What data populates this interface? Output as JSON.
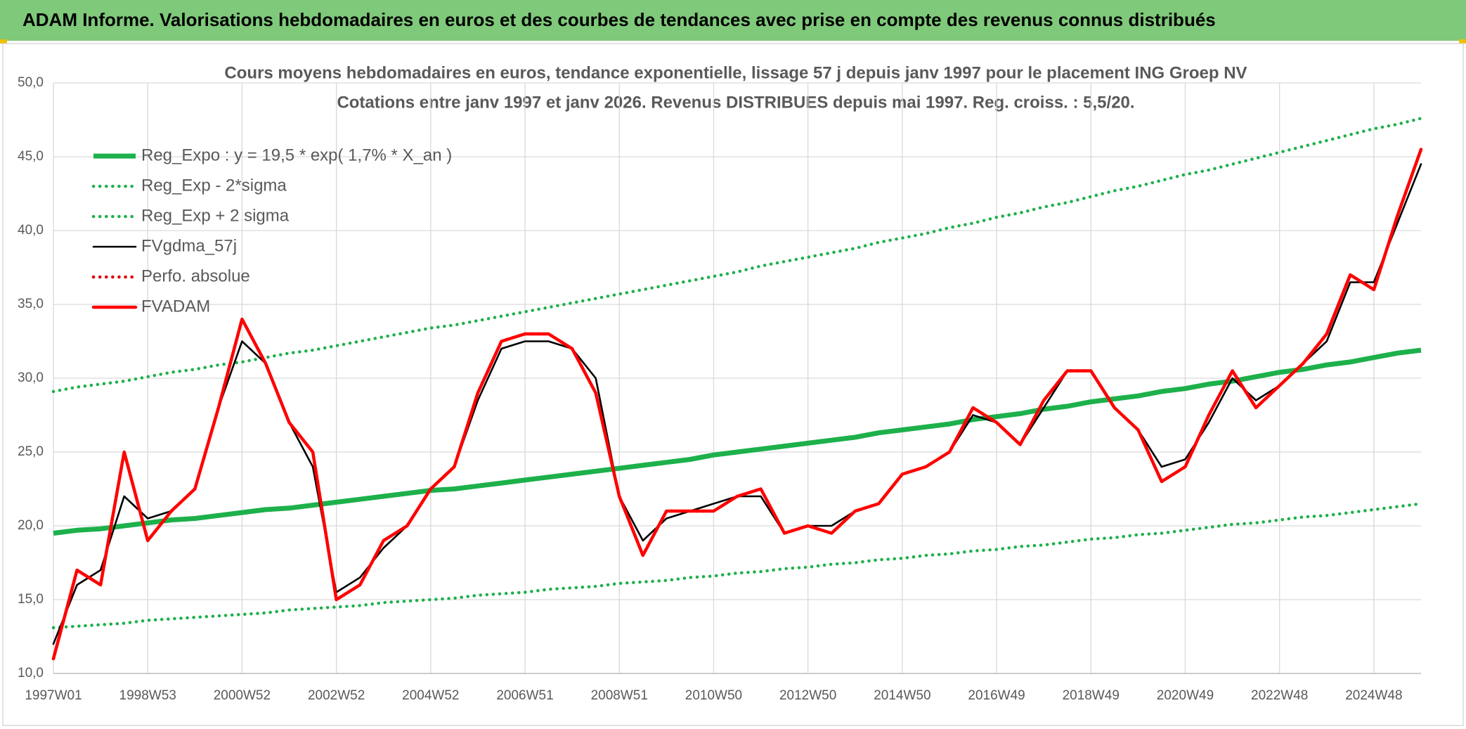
{
  "header": {
    "title": "ADAM Informe. Valorisations hebdomadaires en euros et des courbes de tendances avec prise en compte des revenus connus distribués"
  },
  "chart_data": {
    "type": "line",
    "title": "Cours moyens hebdomadaires en euros, tendance exponentielle, lissage 57 j depuis janv 1997 pour le placement ING Groep NV",
    "subtitle": "Cotations entre janv 1997 et janv 2026. Revenus DISTRIBUES depuis mai 1997. Reg. croiss. : 5,5/20.",
    "categories": [
      "1997W01",
      null,
      null,
      null,
      "1998W53",
      null,
      null,
      null,
      "2000W52",
      null,
      null,
      null,
      "2002W52",
      null,
      null,
      null,
      "2004W52",
      null,
      null,
      null,
      "2006W51",
      null,
      null,
      null,
      "2008W51",
      null,
      null,
      null,
      "2010W50",
      null,
      null,
      null,
      "2012W50",
      null,
      null,
      null,
      "2014W50",
      null,
      null,
      null,
      "2016W49",
      null,
      null,
      null,
      "2018W49",
      null,
      null,
      null,
      "2020W49",
      null,
      null,
      null,
      "2022W48",
      null,
      null,
      null,
      "2024W48",
      null,
      null
    ],
    "ylim": [
      10,
      50
    ],
    "yticks": [
      {
        "value": 10,
        "label": "10,0"
      },
      {
        "value": 15,
        "label": "15,0"
      },
      {
        "value": 20,
        "label": "20,0"
      },
      {
        "value": 25,
        "label": "25,0"
      },
      {
        "value": 30,
        "label": "30,0"
      },
      {
        "value": 35,
        "label": "35,0"
      },
      {
        "value": 40,
        "label": "40,0"
      },
      {
        "value": 45,
        "label": "45,0"
      },
      {
        "value": 50,
        "label": "50,0"
      }
    ],
    "grid": true,
    "legend": "upper left",
    "series": [
      {
        "name": "Reg_Expo : y = 19,5 * exp( 1,7% *  X_an )",
        "color": "#1db04b",
        "style": "thick",
        "values": [
          19.5,
          19.7,
          19.8,
          20.0,
          20.2,
          20.4,
          20.5,
          20.7,
          20.9,
          21.1,
          21.2,
          21.4,
          21.6,
          21.8,
          22.0,
          22.2,
          22.4,
          22.5,
          22.7,
          22.9,
          23.1,
          23.3,
          23.5,
          23.7,
          23.9,
          24.1,
          24.3,
          24.5,
          24.8,
          25.0,
          25.2,
          25.4,
          25.6,
          25.8,
          26.0,
          26.3,
          26.5,
          26.7,
          26.9,
          27.2,
          27.4,
          27.6,
          27.9,
          28.1,
          28.4,
          28.6,
          28.8,
          29.1,
          29.3,
          29.6,
          29.8,
          30.1,
          30.4,
          30.6,
          30.9,
          31.1,
          31.4,
          31.7,
          31.9
        ]
      },
      {
        "name": "Reg_Exp - 2*sigma",
        "color": "#1db04b",
        "style": "dotted",
        "values": [
          13.1,
          13.2,
          13.3,
          13.4,
          13.6,
          13.7,
          13.8,
          13.9,
          14.0,
          14.1,
          14.3,
          14.4,
          14.5,
          14.6,
          14.8,
          14.9,
          15.0,
          15.1,
          15.3,
          15.4,
          15.5,
          15.7,
          15.8,
          15.9,
          16.1,
          16.2,
          16.3,
          16.5,
          16.6,
          16.8,
          16.9,
          17.1,
          17.2,
          17.4,
          17.5,
          17.7,
          17.8,
          18.0,
          18.1,
          18.3,
          18.4,
          18.6,
          18.7,
          18.9,
          19.1,
          19.2,
          19.4,
          19.5,
          19.7,
          19.9,
          20.1,
          20.2,
          20.4,
          20.6,
          20.7,
          20.9,
          21.1,
          21.3,
          21.5
        ]
      },
      {
        "name": "Reg_Exp + 2 sigma",
        "color": "#1db04b",
        "style": "dotted",
        "values": [
          29.1,
          29.4,
          29.6,
          29.8,
          30.1,
          30.4,
          30.6,
          30.9,
          31.1,
          31.4,
          31.7,
          31.9,
          32.2,
          32.5,
          32.8,
          33.1,
          33.4,
          33.6,
          33.9,
          34.2,
          34.5,
          34.8,
          35.1,
          35.4,
          35.7,
          36.0,
          36.3,
          36.6,
          36.9,
          37.2,
          37.6,
          37.9,
          38.2,
          38.5,
          38.8,
          39.2,
          39.5,
          39.8,
          40.2,
          40.5,
          40.9,
          41.2,
          41.6,
          41.9,
          42.3,
          42.7,
          43.0,
          43.4,
          43.8,
          44.1,
          44.5,
          44.9,
          45.3,
          45.7,
          46.1,
          46.5,
          46.9,
          47.2,
          47.6
        ]
      },
      {
        "name": "FVgdma_57j",
        "color": "#000000",
        "style": "thin",
        "values": [
          12,
          16,
          17,
          22,
          20.5,
          21,
          22.5,
          28,
          32.5,
          31,
          27,
          24,
          15.5,
          16.5,
          18.5,
          20,
          22.5,
          24,
          28.5,
          32,
          32.5,
          32.5,
          32,
          30,
          22,
          19,
          20.5,
          21,
          21.5,
          22,
          22,
          19.5,
          20,
          20,
          21,
          21.5,
          23.5,
          24,
          25,
          27.5,
          27,
          25.5,
          28,
          30.5,
          30.5,
          28,
          26.5,
          24,
          24.5,
          27,
          30,
          28.5,
          29.5,
          31,
          32.5,
          36.5,
          36.5,
          40.5,
          44.5
        ]
      },
      {
        "name": "Perfo. absolue",
        "color": "#e00000",
        "style": "dotted",
        "values": [
          11,
          17,
          16,
          25,
          19,
          21,
          22.5,
          28,
          34,
          31,
          27,
          25,
          15,
          16,
          19,
          20,
          22.5,
          24,
          29,
          32.5,
          33,
          33,
          32,
          29,
          22,
          18,
          21,
          21,
          21,
          22,
          22.5,
          19.5,
          20,
          19.5,
          21,
          21.5,
          23.5,
          24,
          25,
          28,
          27,
          25.5,
          28.5,
          30.5,
          30.5,
          28,
          26.5,
          23,
          24,
          27.5,
          30.5,
          28,
          29.5,
          31,
          33,
          37,
          36,
          41,
          45.5
        ]
      },
      {
        "name": "FVADAM",
        "color": "#ff0000",
        "style": "solid",
        "values": [
          11,
          17,
          16,
          25,
          19,
          21,
          22.5,
          28,
          34,
          31,
          27,
          25,
          15,
          16,
          19,
          20,
          22.5,
          24,
          29,
          32.5,
          33,
          33,
          32,
          29,
          22,
          18,
          21,
          21,
          21,
          22,
          22.5,
          19.5,
          20,
          19.5,
          21,
          21.5,
          23.5,
          24,
          25,
          28,
          27,
          25.5,
          28.5,
          30.5,
          30.5,
          28,
          26.5,
          23,
          24,
          27.5,
          30.5,
          28,
          29.5,
          31,
          33,
          37,
          36,
          41,
          45.5
        ]
      }
    ]
  }
}
